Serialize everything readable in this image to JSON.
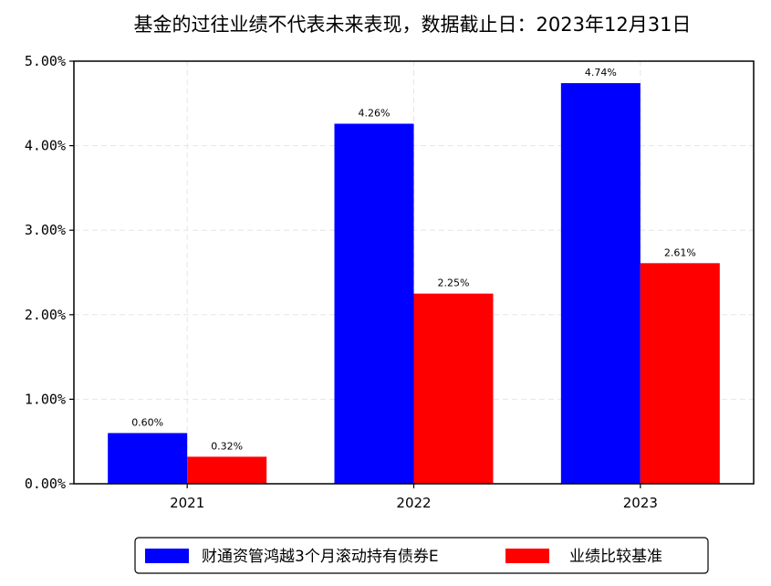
{
  "chart_data": {
    "type": "bar",
    "title": "基金的过往业绩不代表未来表现，数据截止日：2023年12月31日",
    "categories": [
      "2021",
      "2022",
      "2023"
    ],
    "series": [
      {
        "name": "财通资管鸿越3个月滚动持有债券E",
        "values": [
          0.6,
          4.26,
          4.74
        ],
        "labels": [
          "0.60%",
          "4.26%",
          "4.74%"
        ],
        "color": "#0000ff"
      },
      {
        "name": "业绩比较基准",
        "values": [
          0.32,
          2.25,
          2.61
        ],
        "labels": [
          "0.32%",
          "2.25%",
          "2.61%"
        ],
        "color": "#ff0000"
      }
    ],
    "y_ticks": [
      "0.00%",
      "1.00%",
      "2.00%",
      "3.00%",
      "4.00%",
      "5.00%"
    ],
    "ylim": [
      0,
      5
    ],
    "xlabel": "",
    "ylabel": "",
    "grid": true,
    "legend_position": "bottom-center"
  }
}
